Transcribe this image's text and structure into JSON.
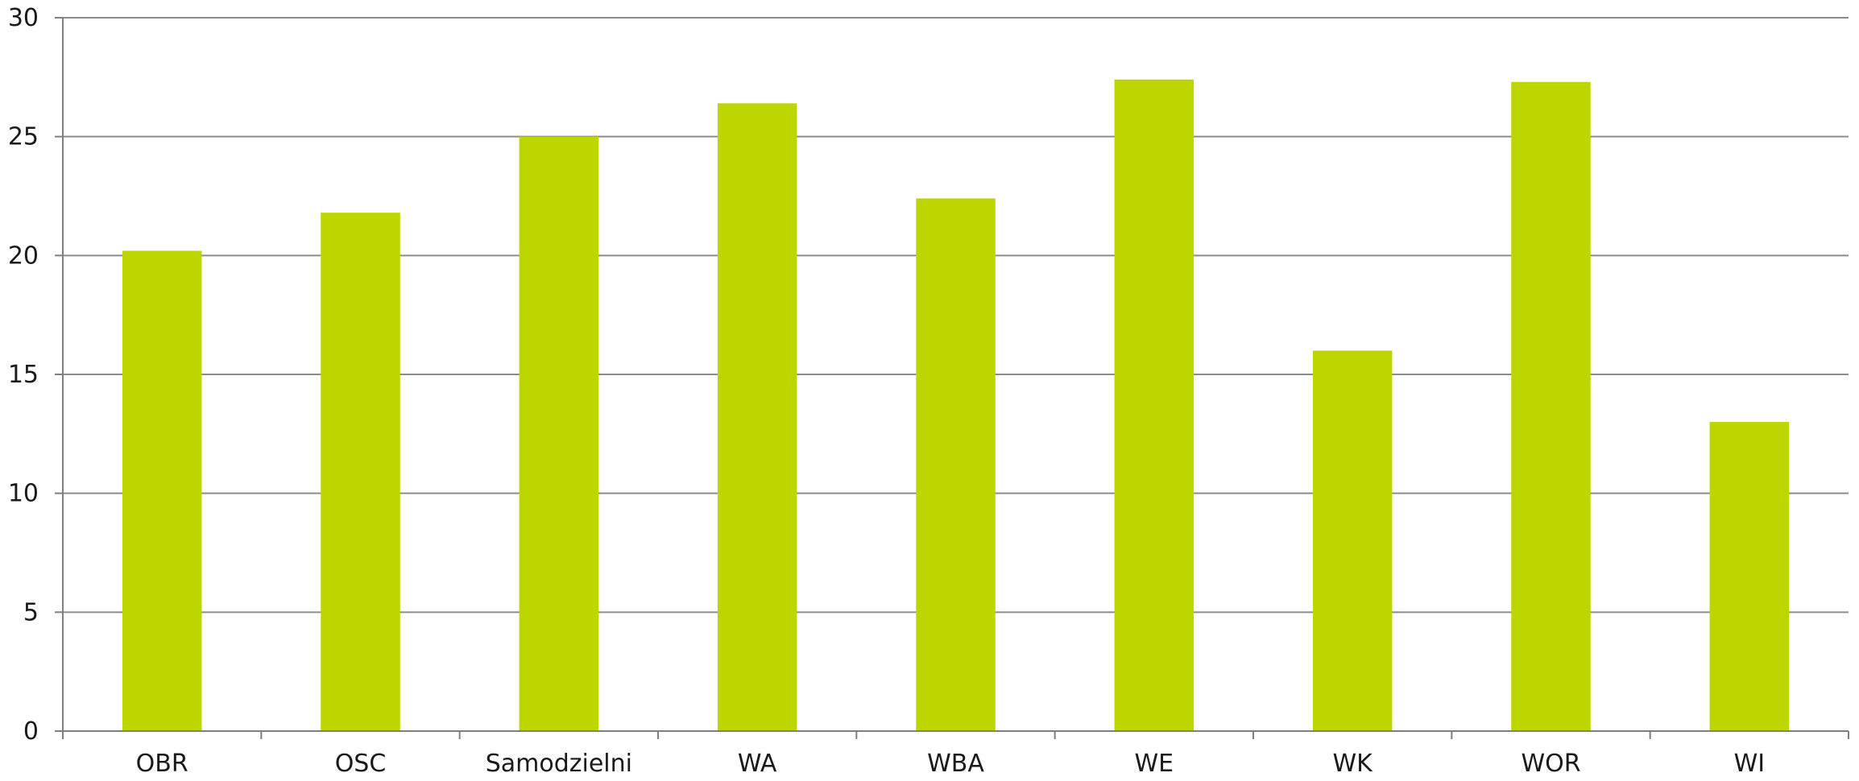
{
  "chart_data": {
    "type": "bar",
    "title": "",
    "xlabel": "",
    "ylabel": "",
    "categories": [
      "OBR",
      "OSC",
      "Samodzielni",
      "WA",
      "WBA",
      "WE",
      "WK",
      "WOR",
      "WI"
    ],
    "values": [
      20.2,
      21.8,
      25.0,
      26.4,
      22.4,
      27.4,
      16.0,
      27.3,
      13.0
    ],
    "ylim": [
      0,
      30
    ],
    "yticks": [
      0,
      5,
      10,
      15,
      20,
      25,
      30
    ],
    "grid": true,
    "legend": "none",
    "colors": {
      "bar": "#bed600",
      "grid": "#8c8c8c",
      "axis": "#7f7f7f"
    }
  }
}
